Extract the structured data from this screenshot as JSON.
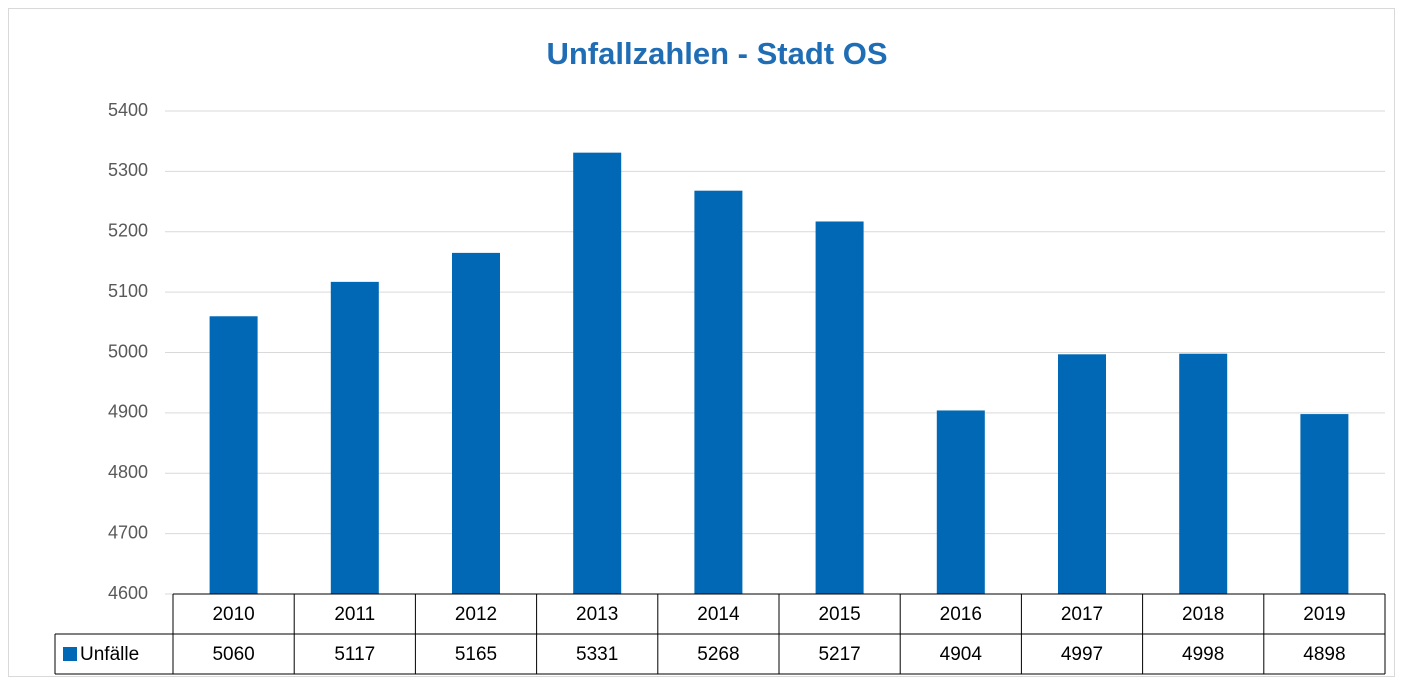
{
  "chart_data": {
    "type": "bar",
    "title": "Unfallzahlen - Stadt OS",
    "categories": [
      "2010",
      "2011",
      "2012",
      "2013",
      "2014",
      "2015",
      "2016",
      "2017",
      "2018",
      "2019"
    ],
    "series": [
      {
        "name": "Unfälle",
        "color": "#0068b4",
        "values": [
          5060,
          5117,
          5165,
          5331,
          5268,
          5217,
          4904,
          4997,
          4998,
          4898
        ]
      }
    ],
    "ylim": [
      4600,
      5400
    ],
    "yticks": [
      4600,
      4700,
      4800,
      4900,
      5000,
      5100,
      5200,
      5300,
      5400
    ],
    "grid": true
  }
}
